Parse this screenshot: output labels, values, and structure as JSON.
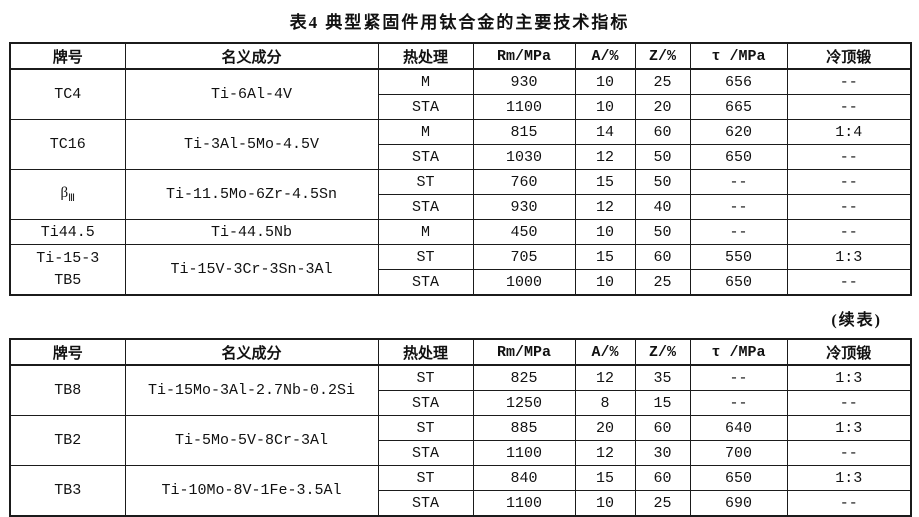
{
  "page": {
    "title": "表4  典型紧固件用钛合金的主要技术指标",
    "continued_label": "(续表)"
  },
  "columns": {
    "grade": "牌号",
    "composition": "名义成分",
    "heat_treatment": "热处理",
    "rm": "Rm/MPa",
    "a": "A/%",
    "z": "Z/%",
    "tau": "τ /MPa",
    "cold_heading": "冷顶锻"
  },
  "table1": {
    "groups": [
      {
        "grade": "TC4",
        "composition": "Ti-6Al-4V",
        "rows": [
          [
            "M",
            "930",
            "10",
            "25",
            "656",
            "--"
          ],
          [
            "STA",
            "1100",
            "10",
            "20",
            "665",
            "--"
          ]
        ]
      },
      {
        "grade": "TC16",
        "composition": "Ti-3Al-5Mo-4.5V",
        "rows": [
          [
            "M",
            "815",
            "14",
            "60",
            "620",
            "1:4"
          ],
          [
            "STA",
            "1030",
            "12",
            "50",
            "650",
            "--"
          ]
        ]
      },
      {
        "grade": "β",
        "grade_sub": "Ⅲ",
        "composition": "Ti-11.5Mo-6Zr-4.5Sn",
        "rows": [
          [
            "ST",
            "760",
            "15",
            "50",
            "--",
            "--"
          ],
          [
            "STA",
            "930",
            "12",
            "40",
            "--",
            "--"
          ]
        ]
      },
      {
        "grade": "Ti44.5",
        "composition": "Ti-44.5Nb",
        "rows": [
          [
            "M",
            "450",
            "10",
            "50",
            "--",
            "--"
          ]
        ]
      },
      {
        "grade": "Ti-15-3",
        "grade_line2": "TB5",
        "composition": "Ti-15V-3Cr-3Sn-3Al",
        "rows": [
          [
            "ST",
            "705",
            "15",
            "60",
            "550",
            "1:3"
          ],
          [
            "STA",
            "1000",
            "10",
            "25",
            "650",
            "--"
          ]
        ]
      }
    ]
  },
  "table2": {
    "groups": [
      {
        "grade": "TB8",
        "composition": "Ti-15Mo-3Al-2.7Nb-0.2Si",
        "rows": [
          [
            "ST",
            "825",
            "12",
            "35",
            "--",
            "1:3"
          ],
          [
            "STA",
            "1250",
            "8",
            "15",
            "--",
            "--"
          ]
        ]
      },
      {
        "grade": "TB2",
        "composition": "Ti-5Mo-5V-8Cr-3Al",
        "rows": [
          [
            "ST",
            "885",
            "20",
            "60",
            "640",
            "1:3"
          ],
          [
            "STA",
            "1100",
            "12",
            "30",
            "700",
            "--"
          ]
        ]
      },
      {
        "grade": "TB3",
        "composition": "Ti-10Mo-8V-1Fe-3.5Al",
        "rows": [
          [
            "ST",
            "840",
            "15",
            "60",
            "650",
            "1:3"
          ],
          [
            "STA",
            "1100",
            "10",
            "25",
            "690",
            "--"
          ]
        ]
      }
    ]
  }
}
